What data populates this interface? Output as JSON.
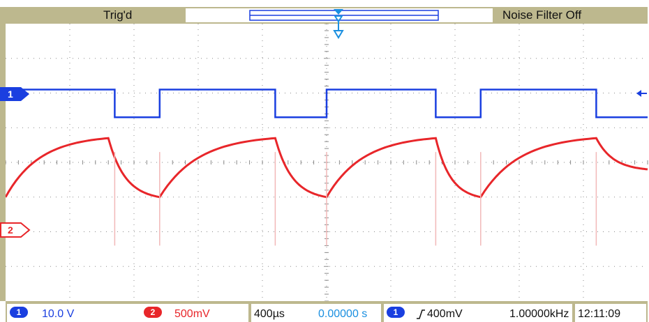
{
  "status": {
    "trigger_state": "Trig'd",
    "noise_filter": "Noise Filter Off"
  },
  "markers": {
    "ch1": "1",
    "ch2": "2"
  },
  "readouts": {
    "ch1_badge": "1",
    "ch1_scale": "10.0 V",
    "ch2_badge": "2",
    "ch2_scale": "500mV",
    "timebase": "400µs",
    "trigger_position": "0.00000 s",
    "trig_source_badge": "1",
    "trig_level": "400mV",
    "frequency": "1.00000kHz",
    "clock": "12:11:09"
  },
  "colors": {
    "ch1": "#1a3fe0",
    "ch2": "#e8262a",
    "frame": "#bdb88e",
    "grid": "#8a8a8a"
  },
  "icons": {
    "trigger_slope": "rising-edge-icon",
    "trigger_point": "trigger-arrow-icon"
  },
  "chart_data": {
    "type": "line",
    "grid": true,
    "x_units": "s",
    "xlim": [
      -0.002,
      0.002
    ],
    "series": [
      {
        "name": "1",
        "x": [
          -0.002,
          -0.00132,
          -0.00132,
          -0.00104,
          -0.00104,
          -0.00032,
          -0.00032,
          0.0,
          0.0,
          0.00068,
          0.00068,
          0.00096,
          0.00096,
          0.00168,
          0.00168,
          0.002
        ],
        "y": [
          2.1,
          2.1,
          1.3,
          1.3,
          2.1,
          2.1,
          1.3,
          1.3,
          2.1,
          2.1,
          1.3,
          1.3,
          2.1,
          2.1,
          1.3,
          1.3
        ]
      },
      {
        "name": "2",
        "x": [
          -0.002,
          -0.00136,
          -0.00104,
          -0.00032,
          0.0,
          0.00068,
          0.00096,
          0.00168,
          0.002
        ],
        "y": [
          -1.0,
          0.7,
          -1.0,
          0.7,
          -1.0,
          0.7,
          -1.0,
          0.7,
          -0.2
        ]
      }
    ]
  }
}
